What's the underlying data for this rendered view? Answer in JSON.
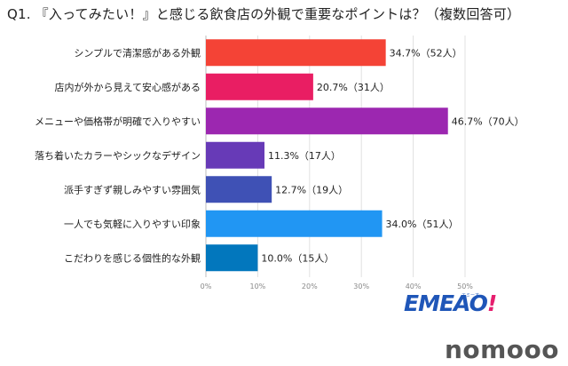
{
  "title": "Q1. 『入ってみたい！』と感じる飲食店の外観で重要なポイントは？（複数回答可）",
  "logo_text": "EMEAO",
  "logo_bang": "!",
  "logo_subtext": "エミーオ",
  "brand_watermark": "nomooo",
  "chart_data": {
    "type": "bar",
    "orientation": "horizontal",
    "categories": [
      "シンプルで清潔感がある外観",
      "店内が外から見えて安心感がある",
      "メニューや価格帯が明確で入りやすい",
      "落ち着いたカラーやシックなデザイン",
      "派手すぎず親しみやすい雰囲気",
      "一人でも気軽に入りやすい印象",
      "こだわりを感じる個性的な外観"
    ],
    "values": [
      34.7,
      20.7,
      46.7,
      11.3,
      12.7,
      34.0,
      10.0
    ],
    "data_labels": [
      "34.7%（52人）",
      "20.7%（31人）",
      "46.7%（70人）",
      "11.3%（17人）",
      "12.7%（19人）",
      "34.0%（51人）",
      "10.0%（15人）"
    ],
    "colors": [
      "#f44336",
      "#e91e63",
      "#9c27b0",
      "#673ab7",
      "#3f51b5",
      "#2196f3",
      "#0277bd"
    ],
    "xlim": [
      0,
      50
    ],
    "x_ticks": [
      "0%",
      "10%",
      "20%",
      "30%",
      "40%",
      "50%"
    ],
    "grid": true
  }
}
